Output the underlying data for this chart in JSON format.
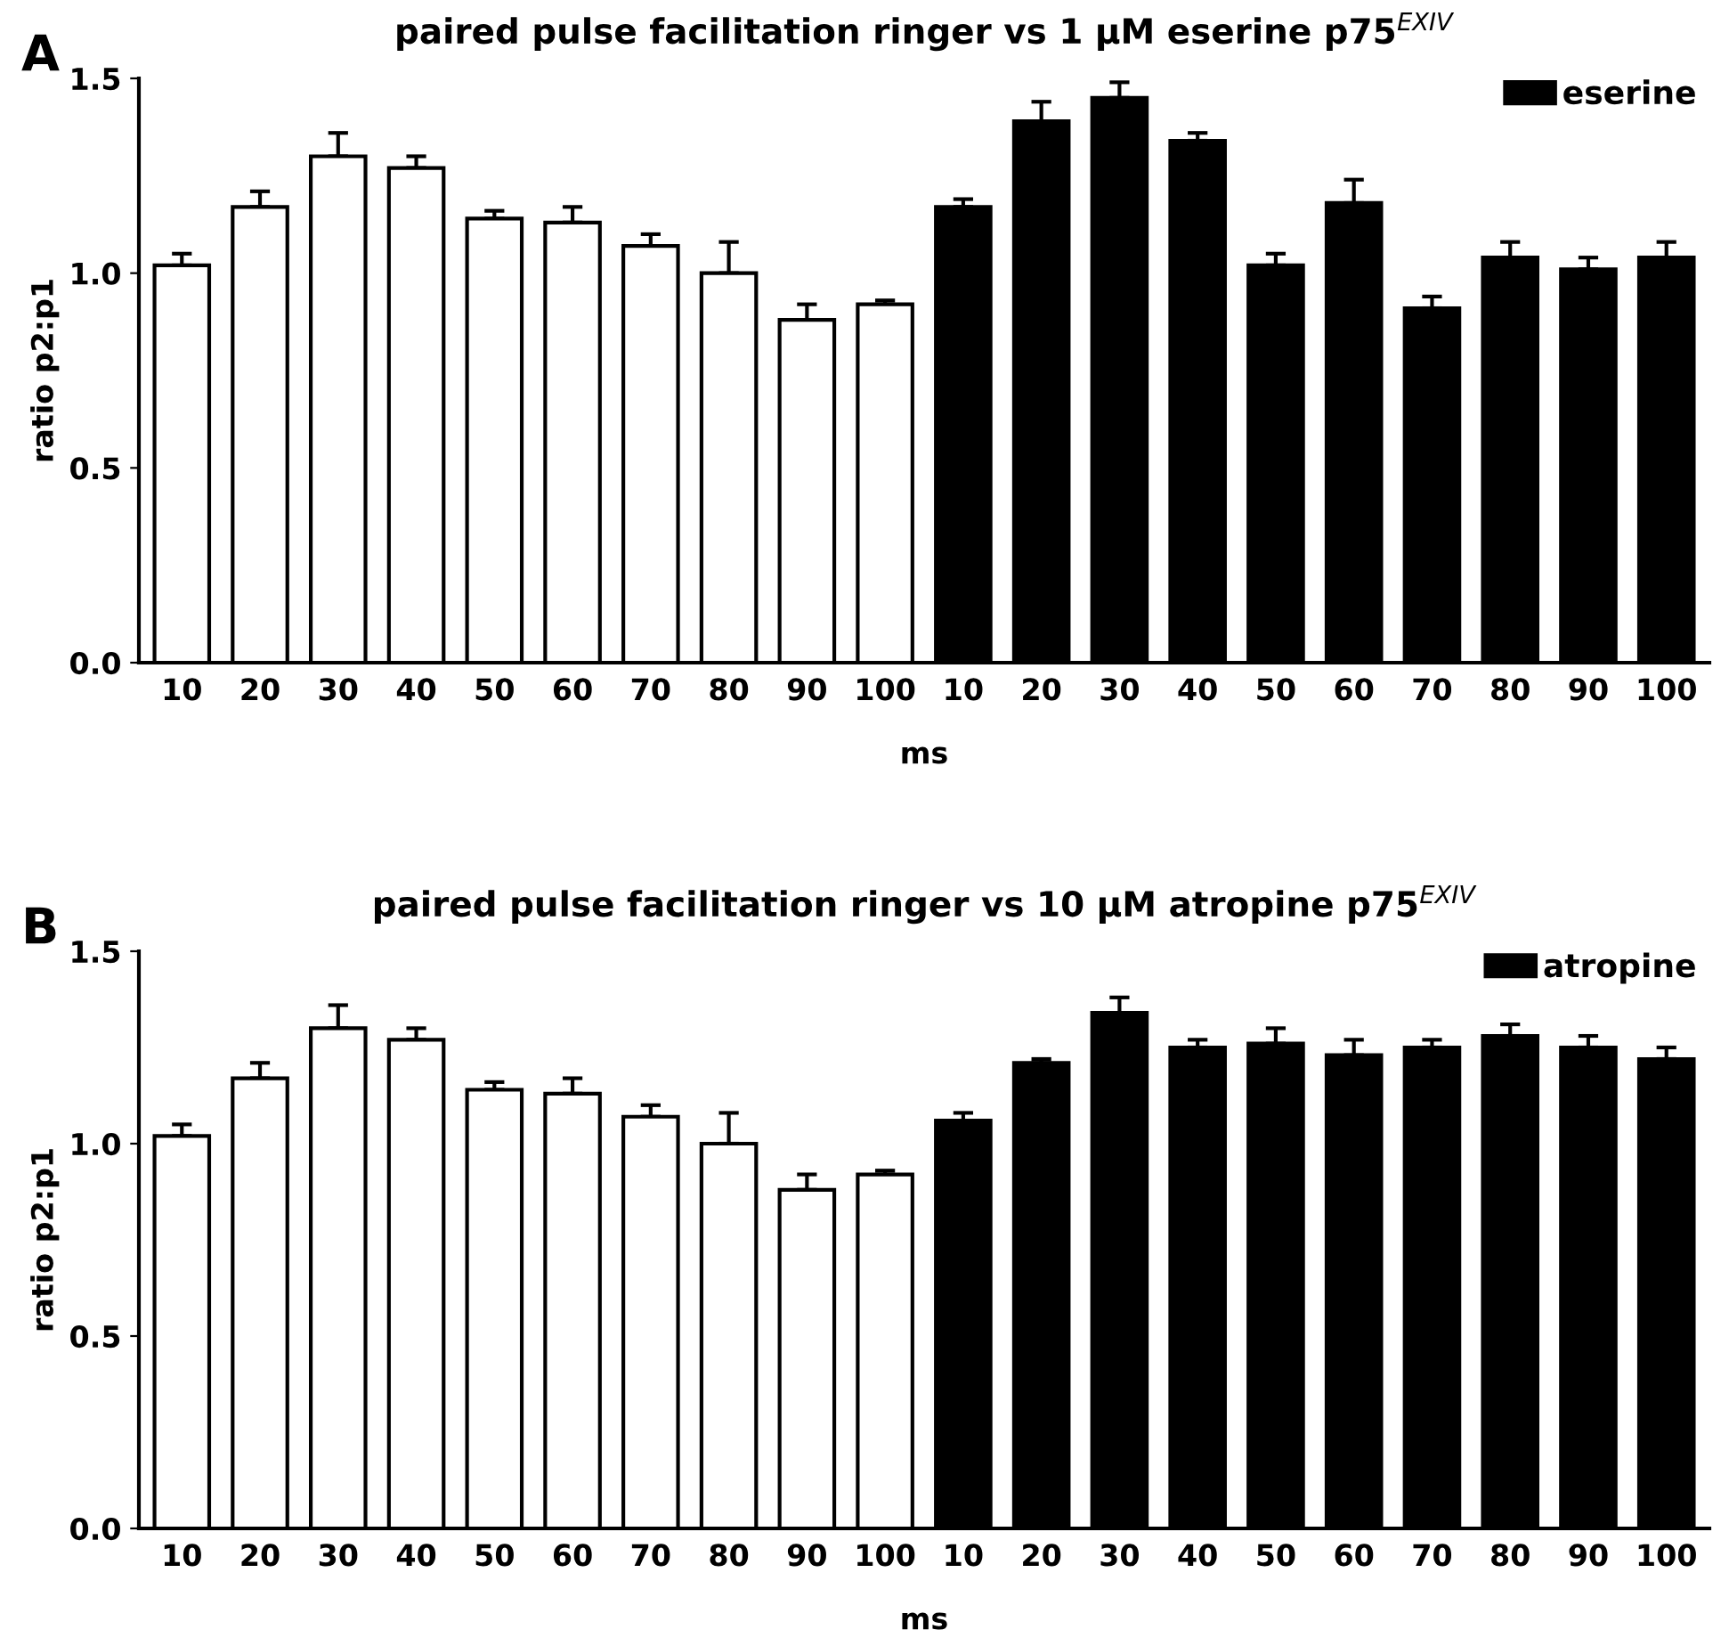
{
  "chart_data": [
    {
      "type": "bar",
      "title": "paired pulse facilitation ringer vs 1 μM eserine p75$^{EXIV}$",
      "xlabel": "ms",
      "ylabel": "ratio p2:p1",
      "annotations": [
        "A"
      ],
      "categories": [
        "10",
        "20",
        "30",
        "40",
        "50",
        "60",
        "70",
        "80",
        "90",
        "100",
        "10",
        "20",
        "30",
        "40",
        "50",
        "60",
        "70",
        "80",
        "90",
        "100"
      ],
      "series": [
        {
          "color": "#ffffff",
          "values": [
            1.02,
            1.17,
            1.3,
            1.27,
            1.14,
            1.13,
            1.07,
            1.0,
            0.88,
            0.92,
            null,
            null,
            null,
            null,
            null,
            null,
            null,
            null,
            null,
            null
          ],
          "errors": [
            [
              1.02,
              1.05
            ],
            [
              1.17,
              1.21
            ],
            [
              1.3,
              1.36
            ],
            [
              1.27,
              1.3
            ],
            [
              1.14,
              1.16
            ],
            [
              1.13,
              1.17
            ],
            [
              1.07,
              1.1
            ],
            [
              1.0,
              1.08
            ],
            [
              0.88,
              0.92
            ],
            [
              0.92,
              0.93
            ],
            null,
            null,
            null,
            null,
            null,
            null,
            null,
            null,
            null,
            null
          ]
        },
        {
          "name": "eserine",
          "color": "#000000",
          "values": [
            null,
            null,
            null,
            null,
            null,
            null,
            null,
            null,
            null,
            null,
            1.17,
            1.39,
            1.45,
            1.34,
            1.02,
            1.18,
            0.91,
            1.04,
            1.01,
            1.04
          ],
          "errors": [
            null,
            null,
            null,
            null,
            null,
            null,
            null,
            null,
            null,
            null,
            [
              1.17,
              1.19
            ],
            [
              1.39,
              1.44
            ],
            [
              1.45,
              1.49
            ],
            [
              1.34,
              1.36
            ],
            [
              1.02,
              1.05
            ],
            [
              1.18,
              1.24
            ],
            [
              0.91,
              0.94
            ],
            [
              1.04,
              1.08
            ],
            [
              1.01,
              1.04
            ],
            [
              1.04,
              1.08
            ]
          ]
        }
      ],
      "ylim": [
        0,
        1.5
      ],
      "yticks": [
        {
          "value": 0,
          "label": "0.0"
        },
        {
          "value": 0.5,
          "label": "0.5"
        },
        {
          "value": 1,
          "label": "1.0"
        },
        {
          "value": 1.5,
          "label": "1.5"
        }
      ],
      "grid": false,
      "legend": "top right"
    },
    {
      "type": "bar",
      "title": "paired pulse facilitation ringer vs 10 μM atropine p75$^{EXIV}$",
      "xlabel": "ms",
      "ylabel": "ratio p2:p1",
      "annotations": [
        "B"
      ],
      "categories": [
        "10",
        "20",
        "30",
        "40",
        "50",
        "60",
        "70",
        "80",
        "90",
        "100",
        "10",
        "20",
        "30",
        "40",
        "50",
        "60",
        "70",
        "80",
        "90",
        "100"
      ],
      "series": [
        {
          "color": "#ffffff",
          "values": [
            1.02,
            1.17,
            1.3,
            1.27,
            1.14,
            1.13,
            1.07,
            1.0,
            0.88,
            0.92,
            null,
            null,
            null,
            null,
            null,
            null,
            null,
            null,
            null,
            null
          ],
          "errors": [
            [
              1.02,
              1.05
            ],
            [
              1.17,
              1.21
            ],
            [
              1.3,
              1.36
            ],
            [
              1.27,
              1.3
            ],
            [
              1.14,
              1.16
            ],
            [
              1.13,
              1.17
            ],
            [
              1.07,
              1.1
            ],
            [
              1.0,
              1.08
            ],
            [
              0.88,
              0.92
            ],
            [
              0.92,
              0.93
            ],
            null,
            null,
            null,
            null,
            null,
            null,
            null,
            null,
            null,
            null
          ]
        },
        {
          "name": "atropine",
          "color": "#000000",
          "values": [
            null,
            null,
            null,
            null,
            null,
            null,
            null,
            null,
            null,
            null,
            1.06,
            1.21,
            1.34,
            1.25,
            1.26,
            1.23,
            1.25,
            1.28,
            1.25,
            1.22
          ],
          "errors": [
            null,
            null,
            null,
            null,
            null,
            null,
            null,
            null,
            null,
            null,
            [
              1.06,
              1.08
            ],
            [
              1.21,
              1.22
            ],
            [
              1.34,
              1.38
            ],
            [
              1.25,
              1.27
            ],
            [
              1.26,
              1.3
            ],
            [
              1.23,
              1.27
            ],
            [
              1.25,
              1.27
            ],
            [
              1.28,
              1.31
            ],
            [
              1.25,
              1.28
            ],
            [
              1.22,
              1.25
            ]
          ]
        }
      ],
      "ylim": [
        0,
        1.5
      ],
      "yticks": [
        {
          "value": 0,
          "label": "0.0"
        },
        {
          "value": 0.5,
          "label": "0.5"
        },
        {
          "value": 1,
          "label": "1.0"
        },
        {
          "value": 1.5,
          "label": "1.5"
        }
      ],
      "grid": false,
      "legend": "top right"
    }
  ]
}
